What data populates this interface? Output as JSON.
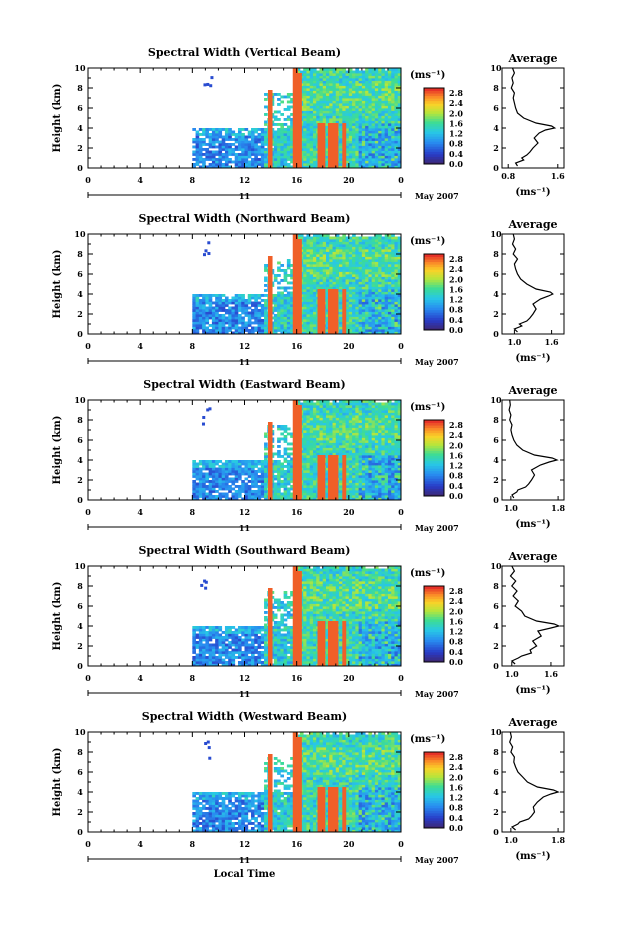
{
  "figure": {
    "x_axis_label": "Local Time",
    "date_label": "May 2007",
    "day_label": "11",
    "colorbar_unit": "(ms⁻¹)",
    "average_title": "Average",
    "average_unit": "(ms⁻¹)",
    "height_label": "Height (km)"
  },
  "chart_data": [
    {
      "type": "heatmap",
      "title": "Spectral Width (Vertical Beam)",
      "ylabel": "Height (km)",
      "xlabel": "",
      "x_ticks": [
        "0",
        "4",
        "8",
        "12",
        "16",
        "20",
        "0"
      ],
      "xlim": [
        0,
        24
      ],
      "y_ticks": [
        "0",
        "2",
        "4",
        "6",
        "8",
        "10"
      ],
      "ylim": [
        0,
        10
      ],
      "colorbar_ticks": [
        "0.0",
        "0.4",
        "0.8",
        "1.2",
        "1.6",
        "2.0",
        "2.4",
        "2.8"
      ],
      "clim": [
        0,
        3.0
      ],
      "average": {
        "xticks": [
          "0.8",
          "1.6"
        ],
        "xlim": [
          0.7,
          1.7
        ],
        "ylim": [
          0,
          10
        ],
        "height": [
          0.2,
          0.5,
          0.8,
          1.0,
          1.3,
          1.6,
          2.0,
          2.5,
          3.0,
          3.5,
          3.8,
          4.0,
          4.2,
          4.5,
          5.0,
          5.5,
          6.0,
          6.5,
          7.0,
          7.5,
          8.0,
          8.5,
          9.0,
          9.5,
          10.0
        ],
        "value": [
          0.95,
          0.92,
          1.05,
          1.02,
          1.1,
          1.15,
          1.2,
          1.28,
          1.22,
          1.3,
          1.4,
          1.55,
          1.5,
          1.25,
          1.05,
          0.95,
          0.92,
          0.9,
          0.88,
          0.9,
          0.85,
          0.88,
          0.86,
          0.9,
          0.87
        ]
      }
    },
    {
      "type": "heatmap",
      "title": "Spectral Width (Northward Beam)",
      "ylabel": "Height (km)",
      "xlabel": "",
      "x_ticks": [
        "0",
        "4",
        "8",
        "12",
        "16",
        "20",
        "0"
      ],
      "xlim": [
        0,
        24
      ],
      "y_ticks": [
        "0",
        "2",
        "4",
        "6",
        "8",
        "10"
      ],
      "ylim": [
        0,
        10
      ],
      "colorbar_ticks": [
        "0.0",
        "0.4",
        "0.8",
        "1.2",
        "1.6",
        "2.0",
        "2.4",
        "2.8"
      ],
      "clim": [
        0,
        3.0
      ],
      "average": {
        "xticks": [
          "1.0",
          "1.6"
        ],
        "xlim": [
          0.8,
          1.8
        ],
        "ylim": [
          0,
          10
        ],
        "height": [
          0.2,
          0.5,
          0.8,
          1.0,
          1.3,
          1.6,
          2.0,
          2.5,
          3.0,
          3.5,
          3.8,
          4.0,
          4.2,
          4.5,
          5.0,
          5.5,
          6.0,
          6.5,
          7.0,
          7.5,
          8.0,
          8.5,
          9.0,
          9.5,
          10.0
        ],
        "value": [
          1.05,
          1.0,
          1.12,
          1.08,
          1.2,
          1.25,
          1.3,
          1.35,
          1.3,
          1.42,
          1.55,
          1.62,
          1.58,
          1.35,
          1.2,
          1.1,
          1.05,
          1.02,
          1.0,
          1.05,
          0.98,
          1.02,
          0.97,
          1.0,
          0.98
        ]
      }
    },
    {
      "type": "heatmap",
      "title": "Spectral Width (Eastward Beam)",
      "ylabel": "Height (km)",
      "xlabel": "",
      "x_ticks": [
        "0",
        "4",
        "8",
        "12",
        "16",
        "20",
        "0"
      ],
      "xlim": [
        0,
        24
      ],
      "y_ticks": [
        "0",
        "2",
        "4",
        "6",
        "8",
        "10"
      ],
      "ylim": [
        0,
        10
      ],
      "colorbar_ticks": [
        "0.0",
        "0.4",
        "0.8",
        "1.2",
        "1.6",
        "2.0",
        "2.4",
        "2.8"
      ],
      "clim": [
        0,
        3.0
      ],
      "average": {
        "xticks": [
          "1.0",
          "1.8"
        ],
        "xlim": [
          0.85,
          1.9
        ],
        "ylim": [
          0,
          10
        ],
        "height": [
          0.2,
          0.5,
          0.8,
          1.0,
          1.3,
          1.6,
          2.0,
          2.5,
          3.0,
          3.5,
          3.8,
          4.0,
          4.2,
          4.5,
          5.0,
          5.5,
          6.0,
          6.5,
          7.0,
          7.5,
          8.0,
          8.5,
          9.0,
          9.5,
          10.0
        ],
        "value": [
          1.05,
          1.02,
          1.1,
          1.12,
          1.25,
          1.3,
          1.35,
          1.4,
          1.35,
          1.5,
          1.65,
          1.78,
          1.7,
          1.4,
          1.2,
          1.1,
          1.05,
          1.02,
          1.0,
          1.02,
          0.98,
          1.0,
          0.97,
          0.99,
          0.98
        ]
      }
    },
    {
      "type": "heatmap",
      "title": "Spectral Width (Southward Beam)",
      "ylabel": "Height (km)",
      "xlabel": "",
      "x_ticks": [
        "0",
        "4",
        "8",
        "12",
        "16",
        "20",
        "0"
      ],
      "xlim": [
        0,
        24
      ],
      "y_ticks": [
        "0",
        "2",
        "4",
        "6",
        "8",
        "10"
      ],
      "ylim": [
        0,
        10
      ],
      "colorbar_ticks": [
        "0.0",
        "0.4",
        "0.8",
        "1.2",
        "1.6",
        "2.0",
        "2.4",
        "2.8"
      ],
      "clim": [
        0,
        3.0
      ],
      "average": {
        "xticks": [
          "1.0",
          "1.6"
        ],
        "xlim": [
          0.85,
          1.8
        ],
        "ylim": [
          0,
          10
        ],
        "height": [
          0.2,
          0.5,
          0.8,
          1.0,
          1.3,
          1.6,
          2.0,
          2.5,
          3.0,
          3.5,
          3.8,
          4.0,
          4.2,
          4.5,
          5.0,
          5.5,
          6.0,
          6.5,
          7.0,
          7.5,
          8.0,
          8.5,
          9.0,
          9.5,
          10.0
        ],
        "value": [
          1.05,
          1.0,
          1.1,
          1.15,
          1.3,
          1.28,
          1.38,
          1.32,
          1.45,
          1.4,
          1.6,
          1.72,
          1.65,
          1.38,
          1.2,
          1.15,
          1.05,
          1.1,
          1.02,
          1.08,
          1.0,
          1.06,
          0.98,
          1.04,
          1.0
        ]
      }
    },
    {
      "type": "heatmap",
      "title": "Spectral Width (Westward Beam)",
      "ylabel": "Height (km)",
      "xlabel": "Local Time",
      "x_ticks": [
        "0",
        "4",
        "8",
        "12",
        "16",
        "20",
        "0"
      ],
      "xlim": [
        0,
        24
      ],
      "y_ticks": [
        "0",
        "2",
        "4",
        "6",
        "8",
        "10"
      ],
      "ylim": [
        0,
        10
      ],
      "colorbar_ticks": [
        "0.0",
        "0.4",
        "0.8",
        "1.2",
        "1.6",
        "2.0",
        "2.4",
        "2.8"
      ],
      "clim": [
        0,
        3.0
      ],
      "average": {
        "xticks": [
          "1.0",
          "1.8"
        ],
        "xlim": [
          0.85,
          1.9
        ],
        "ylim": [
          0,
          10
        ],
        "height": [
          0.2,
          0.5,
          0.8,
          1.0,
          1.3,
          1.6,
          2.0,
          2.5,
          3.0,
          3.5,
          3.8,
          4.0,
          4.2,
          4.5,
          5.0,
          5.5,
          6.0,
          6.5,
          7.0,
          7.5,
          8.0,
          8.5,
          9.0,
          9.5,
          10.0
        ],
        "value": [
          1.08,
          1.02,
          1.12,
          1.15,
          1.3,
          1.35,
          1.4,
          1.38,
          1.45,
          1.55,
          1.68,
          1.8,
          1.72,
          1.45,
          1.28,
          1.2,
          1.12,
          1.08,
          1.05,
          1.06,
          1.0,
          1.03,
          0.98,
          1.01,
          0.99
        ]
      }
    }
  ]
}
